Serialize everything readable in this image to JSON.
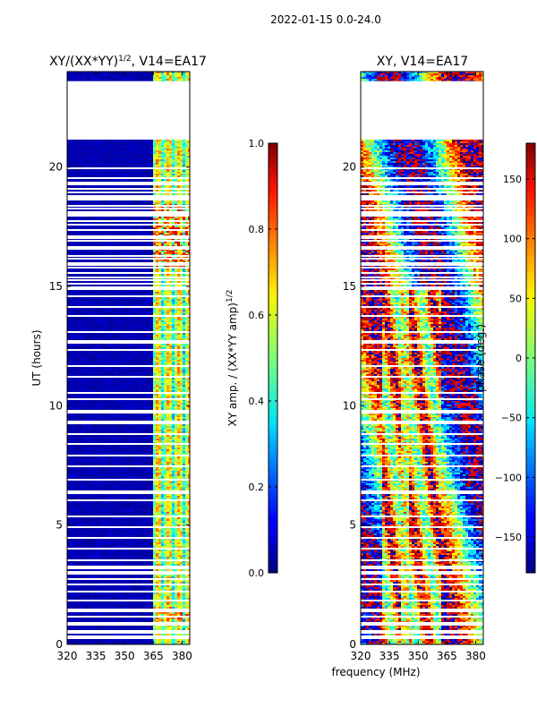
{
  "suptitle": "2022-01-15 0.0-24.0",
  "shared_xlabel": "frequency (MHz)",
  "chart_data": [
    {
      "type": "heatmap",
      "title_main": "XY/(XX*YY)",
      "title_sup": "1/2",
      "title_tail": ", V14=EA17",
      "ylabel": "UT (hours)",
      "xlim": [
        320,
        384
      ],
      "ylim": [
        0,
        24
      ],
      "xticks": [
        "320",
        "335",
        "350",
        "365",
        "380"
      ],
      "xtick_values": [
        320,
        335,
        350,
        365,
        380
      ],
      "yticks": [
        "0",
        "5",
        "10",
        "15",
        "20"
      ],
      "ytick_values": [
        0,
        5,
        10,
        15,
        20
      ],
      "no_data_hours": [
        [
          21.2,
          23.6
        ]
      ],
      "colorbar": {
        "label_main": "XY amp. / (XX*YY amp)",
        "label_sup": "1/2",
        "range": [
          0.0,
          1.0
        ],
        "ticks": [
          "0.0",
          "0.2",
          "0.4",
          "0.6",
          "0.8",
          "1.0"
        ],
        "tick_values": [
          0.0,
          0.2,
          0.4,
          0.6,
          0.8,
          1.0
        ]
      }
    },
    {
      "type": "heatmap",
      "title_main": "XY, V14=EA17",
      "ylabel": "",
      "xlim": [
        320,
        384
      ],
      "ylim": [
        0,
        24
      ],
      "xticks": [
        "320",
        "335",
        "350",
        "365",
        "380"
      ],
      "xtick_values": [
        320,
        335,
        350,
        365,
        380
      ],
      "yticks": [
        "0",
        "5",
        "10",
        "15",
        "20"
      ],
      "ytick_values": [
        0,
        5,
        10,
        15,
        20
      ],
      "no_data_hours": [
        [
          21.2,
          23.6
        ]
      ],
      "colorbar": {
        "label_main": "phase (deg.)",
        "range": [
          -180,
          180
        ],
        "ticks": [
          "−150",
          "−100",
          "−50",
          "0",
          "50",
          "100",
          "150"
        ],
        "tick_values": [
          -150,
          -100,
          -50,
          0,
          50,
          100,
          150
        ]
      }
    }
  ]
}
